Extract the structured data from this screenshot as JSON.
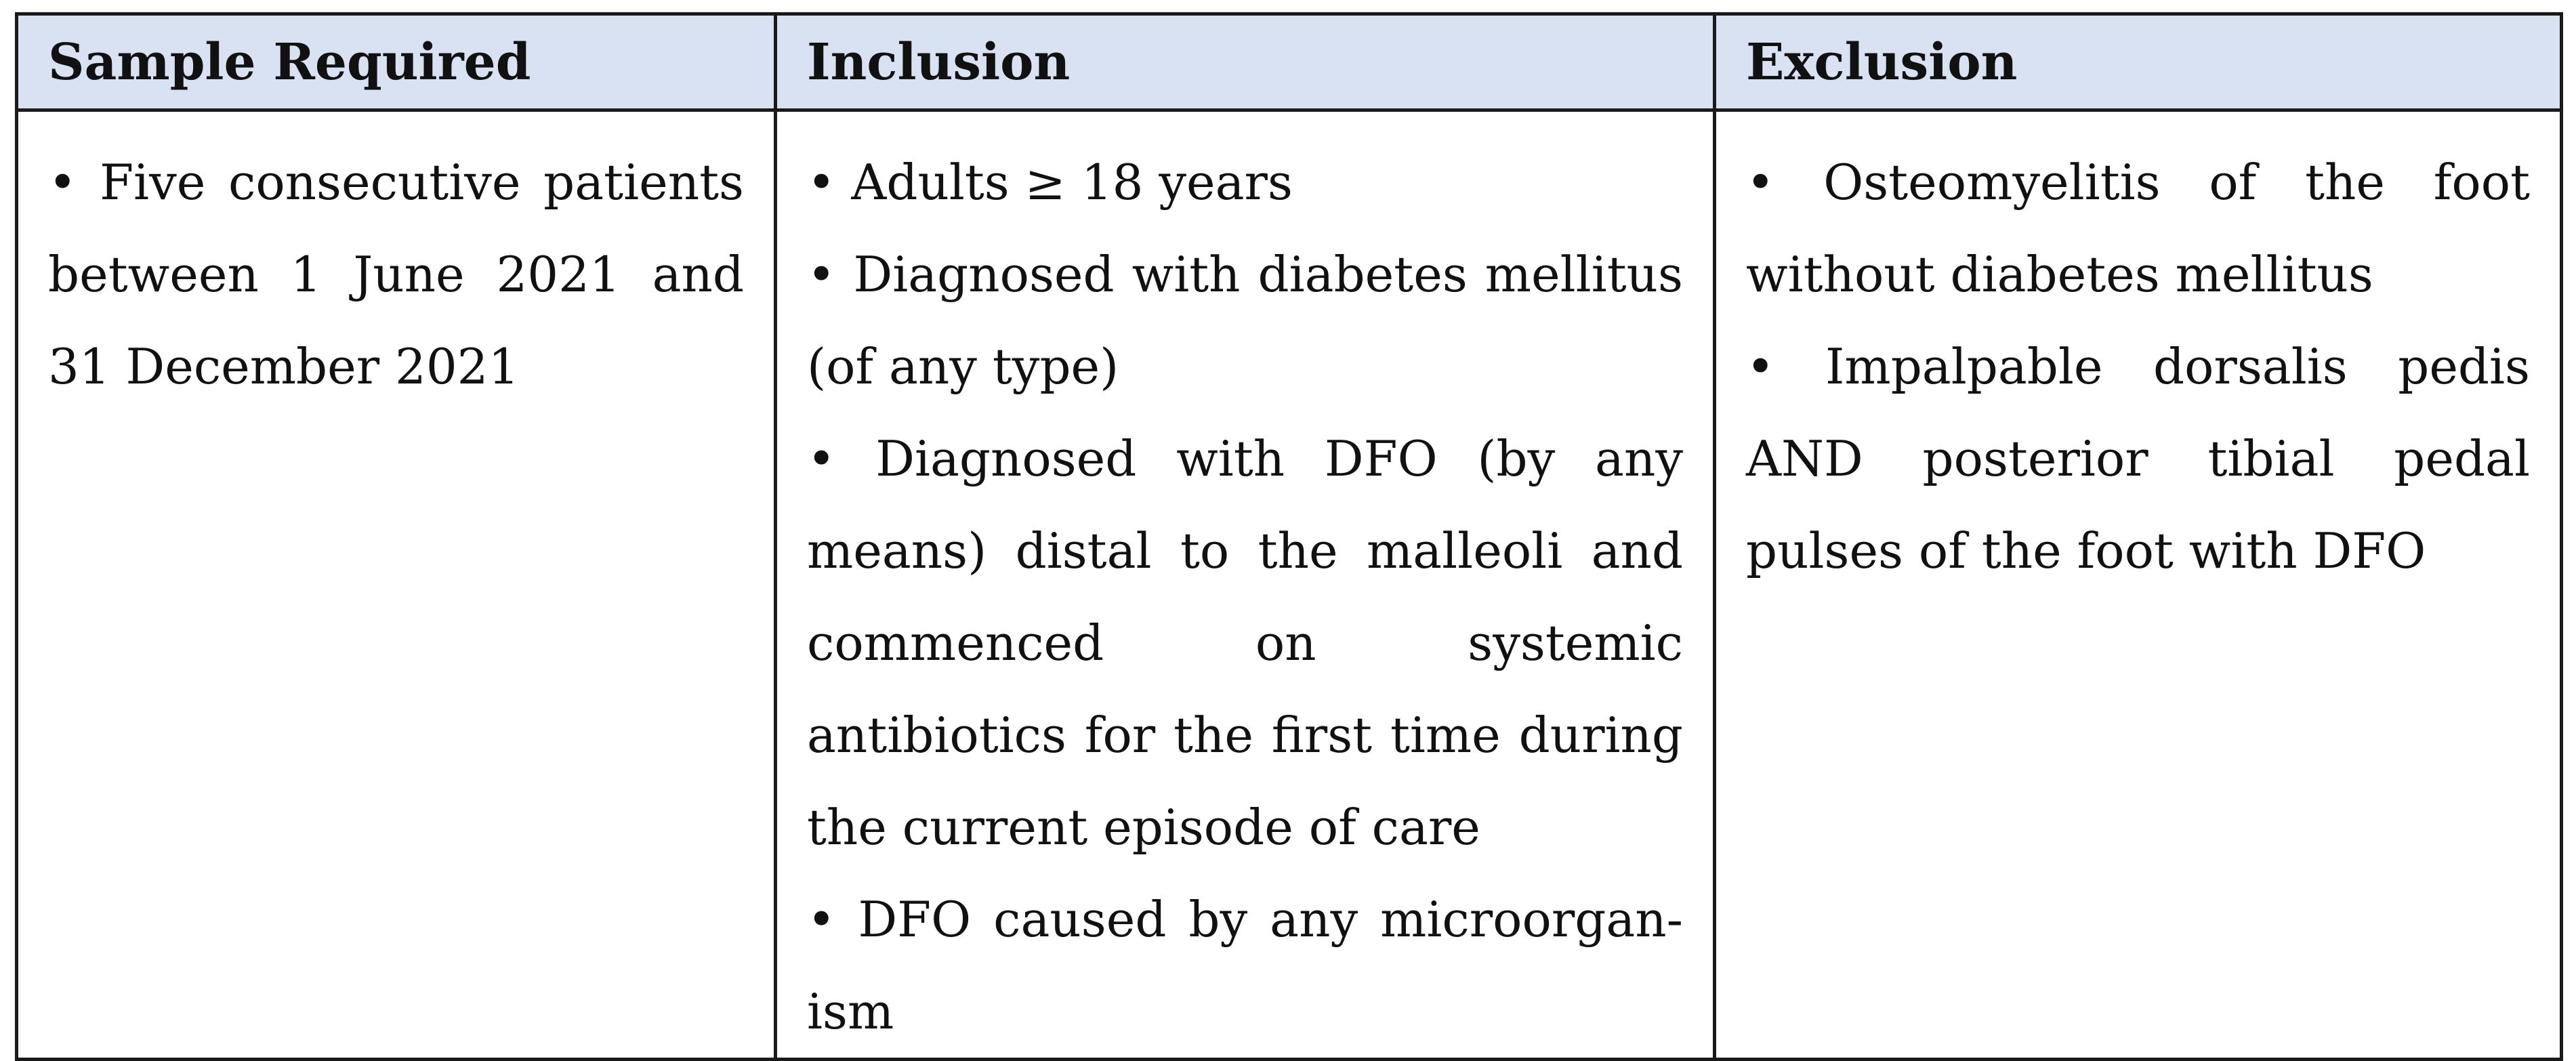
{
  "table": {
    "headers": [
      "Sample Required",
      "Inclusion",
      "Exclusion"
    ],
    "columns": [
      {
        "items": [
          "• Five consecutive patients between 1 June 2021 and 31 December 2021"
        ]
      },
      {
        "items": [
          "• Adults ≥ 18 years",
          "• Diagnosed with diabetes mellitus (of any type)",
          "• Diagnosed with DFO (by any means) distal to the malleoli and commenced on systemic antibiotics for the first time during the current episode of care",
          "• DFO caused by any microorgan­ism"
        ]
      },
      {
        "items": [
          "• Osteomyelitis of the foot without diabetes mellitus",
          "• Impalpable dorsalis pedis AND posterior tibial pedal pulses of the foot with DFO"
        ]
      }
    ]
  }
}
